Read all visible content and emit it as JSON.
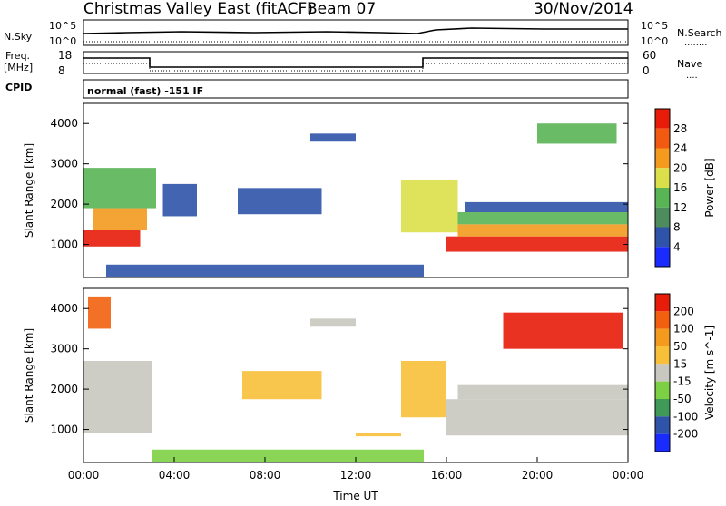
{
  "header": {
    "station": "Christmas Valley East (fitACF)",
    "beam": "Beam 07",
    "date": "30/Nov/2014"
  },
  "sky_panel": {
    "left_label": "N.Sky",
    "right_label": "N.Search",
    "left_ticks": [
      "10^5",
      "10^0"
    ],
    "right_ticks": [
      "10^5",
      "10^0"
    ]
  },
  "freq_panel": {
    "left_label_1": "Freq.",
    "left_label_2": "[MHz]",
    "right_label": "Nave",
    "left_ticks": [
      "18",
      "8"
    ],
    "right_ticks": [
      "60",
      "0"
    ]
  },
  "cpid": {
    "label": "CPID",
    "mode_text": "normal (fast) -151 IF"
  },
  "x_axis": {
    "label": "Time UT",
    "ticks": [
      "00:00",
      "04:00",
      "08:00",
      "12:00",
      "16:00",
      "20:00",
      "00:00"
    ]
  },
  "colors": {
    "power": [
      "#1a2bff",
      "#2e53a8",
      "#4e8c5e",
      "#59b455",
      "#dbe04a",
      "#f39a1f",
      "#f25a12",
      "#e81c0a"
    ],
    "velocity": [
      "#e81c0a",
      "#f2600f",
      "#f39a1f",
      "#f7bf3a",
      "#c8c8c0",
      "#7dd043",
      "#3e9a56",
      "#2e53a8",
      "#1a2bff"
    ]
  },
  "chart_data": [
    {
      "type": "heatmap",
      "title": "Power",
      "xlabel": "Time UT",
      "ylabel": "Slant Range [km]",
      "x_range_hours": [
        0,
        24
      ],
      "ylim": [
        180,
        4500
      ],
      "yticks": [
        "1000",
        "2000",
        "3000",
        "4000"
      ],
      "colorbar": {
        "label": "Power [dB]",
        "ticks": [
          "4",
          "8",
          "12",
          "16",
          "20",
          "24",
          "28"
        ],
        "range": [
          0,
          30
        ]
      },
      "regions": [
        {
          "t0": 0.0,
          "t1": 2.5,
          "r0": 950,
          "r1": 1350,
          "value": 28
        },
        {
          "t0": 0.4,
          "t1": 2.8,
          "r0": 1350,
          "r1": 1900,
          "value": 20
        },
        {
          "t0": 0.0,
          "t1": 3.2,
          "r0": 1900,
          "r1": 2900,
          "value": 12
        },
        {
          "t0": 3.5,
          "t1": 5.0,
          "r0": 1700,
          "r1": 2500,
          "value": 4
        },
        {
          "t0": 6.8,
          "t1": 10.5,
          "r0": 1750,
          "r1": 2400,
          "value": 4
        },
        {
          "t0": 10.0,
          "t1": 12.0,
          "r0": 3550,
          "r1": 3750,
          "value": 6
        },
        {
          "t0": 14.0,
          "t1": 16.5,
          "r0": 1300,
          "r1": 2600,
          "value": 18
        },
        {
          "t0": 16.0,
          "t1": 24.0,
          "r0": 820,
          "r1": 1200,
          "value": 28
        },
        {
          "t0": 16.5,
          "t1": 24.0,
          "r0": 1200,
          "r1": 1500,
          "value": 22
        },
        {
          "t0": 16.5,
          "t1": 24.0,
          "r0": 1500,
          "r1": 1800,
          "value": 12
        },
        {
          "t0": 16.8,
          "t1": 24.0,
          "r0": 1800,
          "r1": 2050,
          "value": 6
        },
        {
          "t0": 20.0,
          "t1": 23.5,
          "r0": 3500,
          "r1": 4000,
          "value": 12
        },
        {
          "t0": 1.0,
          "t1": 15.0,
          "r0": 200,
          "r1": 500,
          "value": 4
        }
      ]
    },
    {
      "type": "heatmap",
      "title": "Velocity",
      "xlabel": "Time UT",
      "ylabel": "Slant Range [km]",
      "x_range_hours": [
        0,
        24
      ],
      "ylim": [
        180,
        4500
      ],
      "yticks": [
        "1000",
        "2000",
        "3000",
        "4000"
      ],
      "colorbar": {
        "label": "Velocity [m s^-1]",
        "ticks": [
          "200",
          "100",
          "50",
          "15",
          "-15",
          "-50",
          "-100",
          "-200"
        ],
        "range": [
          -250,
          250
        ]
      },
      "regions": [
        {
          "t0": 0.0,
          "t1": 3.0,
          "r0": 900,
          "r1": 2700,
          "value": 0
        },
        {
          "t0": 0.2,
          "t1": 1.2,
          "r0": 3500,
          "r1": 4300,
          "value": 180
        },
        {
          "t0": 7.0,
          "t1": 10.5,
          "r0": 1750,
          "r1": 2450,
          "value": 30
        },
        {
          "t0": 10.0,
          "t1": 12.0,
          "r0": 3550,
          "r1": 3750,
          "value": 0
        },
        {
          "t0": 14.0,
          "t1": 16.0,
          "r0": 1300,
          "r1": 2700,
          "value": 30
        },
        {
          "t0": 16.0,
          "t1": 24.0,
          "r0": 850,
          "r1": 1750,
          "value": 0
        },
        {
          "t0": 16.5,
          "t1": 24.0,
          "r0": 1750,
          "r1": 2100,
          "value": 20
        },
        {
          "t0": 18.5,
          "t1": 23.8,
          "r0": 3000,
          "r1": 3900,
          "value": 200
        },
        {
          "t0": 3.0,
          "t1": 15.0,
          "r0": 200,
          "r1": 500,
          "value": -80
        },
        {
          "t0": 12.0,
          "t1": 14.0,
          "r0": 830,
          "r1": 900,
          "value": 30
        }
      ]
    }
  ]
}
